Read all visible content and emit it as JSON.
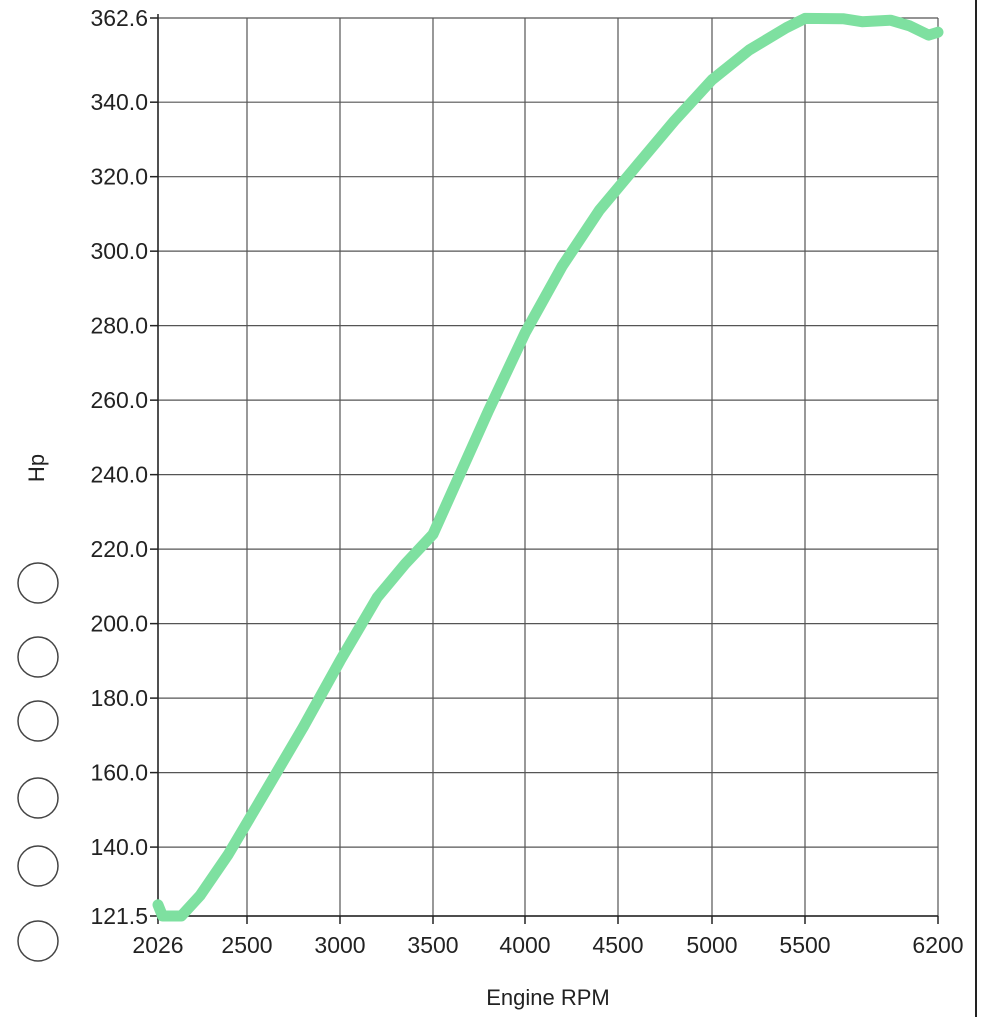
{
  "chart_data": {
    "type": "line",
    "title": "",
    "xlabel": "Engine RPM",
    "ylabel": "Hp",
    "xlim": [
      2026,
      6200
    ],
    "ylim": [
      121.5,
      362.6
    ],
    "x_ticks": [
      2026,
      2500,
      3000,
      3500,
      4000,
      4500,
      5000,
      5500,
      6200
    ],
    "x_tick_labels": [
      "2026",
      "2500",
      "3000",
      "3500",
      "4000",
      "4500",
      "5000",
      "5500",
      "6200"
    ],
    "y_ticks": [
      121.5,
      140.0,
      160.0,
      180.0,
      200.0,
      220.0,
      240.0,
      260.0,
      280.0,
      300.0,
      320.0,
      340.0,
      362.6
    ],
    "y_tick_labels": [
      "121.5",
      "140.0",
      "160.0",
      "180.0",
      "200.0",
      "220.0",
      "240.0",
      "260.0",
      "280.0",
      "300.0",
      "320.0",
      "340.0",
      "362.6"
    ],
    "grid": true,
    "legend": "none",
    "series": [
      {
        "color": "#7ee0a0",
        "x": [
          2026,
          2050,
          2150,
          2250,
          2400,
          2600,
          2800,
          3000,
          3200,
          3350,
          3500,
          3600,
          3800,
          4000,
          4200,
          4400,
          4600,
          4800,
          5000,
          5200,
          5400,
          5500,
          5700,
          5800,
          5950,
          6050,
          6150,
          6200
        ],
        "y": [
          124.5,
          121.5,
          121.5,
          127.0,
          138.0,
          155.0,
          172.0,
          190.0,
          207.0,
          216.0,
          224.0,
          235.0,
          257.0,
          278.0,
          296.0,
          311.0,
          323.0,
          335.0,
          346.0,
          354.0,
          360.0,
          362.5,
          362.4,
          361.6,
          362.0,
          360.5,
          358.0,
          358.8
        ]
      }
    ]
  },
  "decor": {
    "radio_circle_count": 6,
    "radio_circle_label": "radio-circle"
  }
}
